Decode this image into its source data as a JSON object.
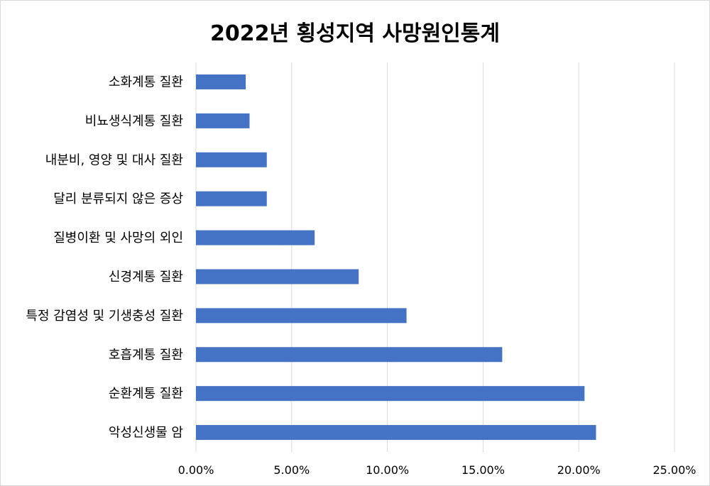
{
  "chart_data": {
    "type": "bar",
    "orientation": "horizontal",
    "title": "2022년 횡성지역 사망원인통계",
    "categories": [
      "소화계통 질환",
      "비뇨생식계통 질환",
      "내분비, 영양 및 대사 질환",
      "달리 분류되지 않은 증상",
      "질병이환 및 사망의 외인",
      "신경계통 질환",
      "특정 감염성 및 기생충성 질환",
      "호흡계통 질환",
      "순환계통 질환",
      "악성신생물 암"
    ],
    "values": [
      2.6,
      2.8,
      3.7,
      3.7,
      6.2,
      8.5,
      11.0,
      16.0,
      20.3,
      20.9
    ],
    "value_unit": "%",
    "xlim": [
      0,
      25
    ],
    "x_ticks": [
      "0.00%",
      "5.00%",
      "10.00%",
      "15.00%",
      "20.00%",
      "25.00%"
    ],
    "grid": "vertical",
    "legend": "none",
    "bar_color": "#4472c4",
    "grid_color": "#d9d9d9"
  }
}
